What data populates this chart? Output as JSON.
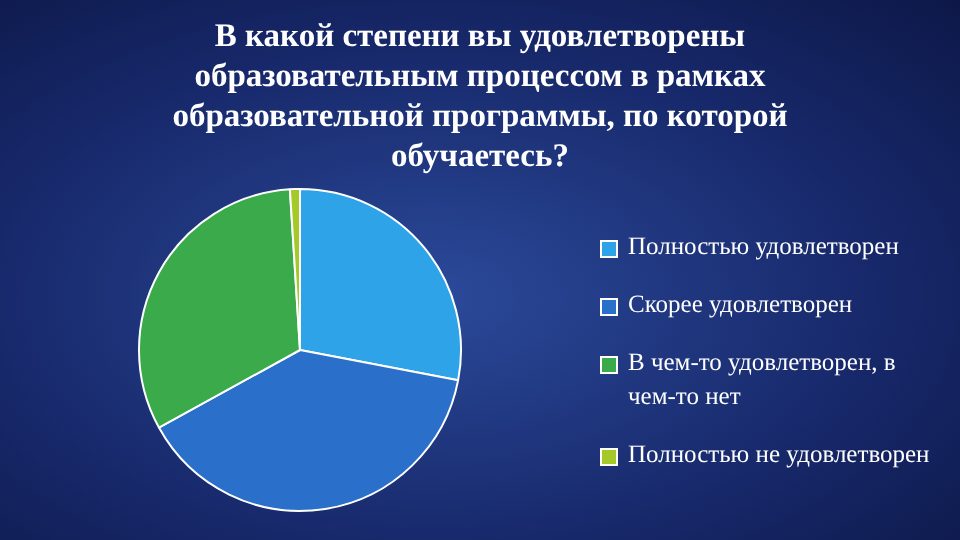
{
  "chart_data": {
    "type": "pie",
    "title": "В какой степени вы удовлетворены образовательным процессом в рамках образовательной программы, по которой обучаетесь?",
    "categories": [
      "Полностью удовлетворен",
      "Скорее удовлетворен",
      "В чем-то удовлетворен, в чем-то нет",
      "Полностью не удовлетворен"
    ],
    "values": [
      28,
      39,
      32,
      1
    ],
    "colors": [
      "#2ea3e8",
      "#2a6fc9",
      "#3aaa4a",
      "#a6c92a"
    ],
    "legend": "right"
  }
}
